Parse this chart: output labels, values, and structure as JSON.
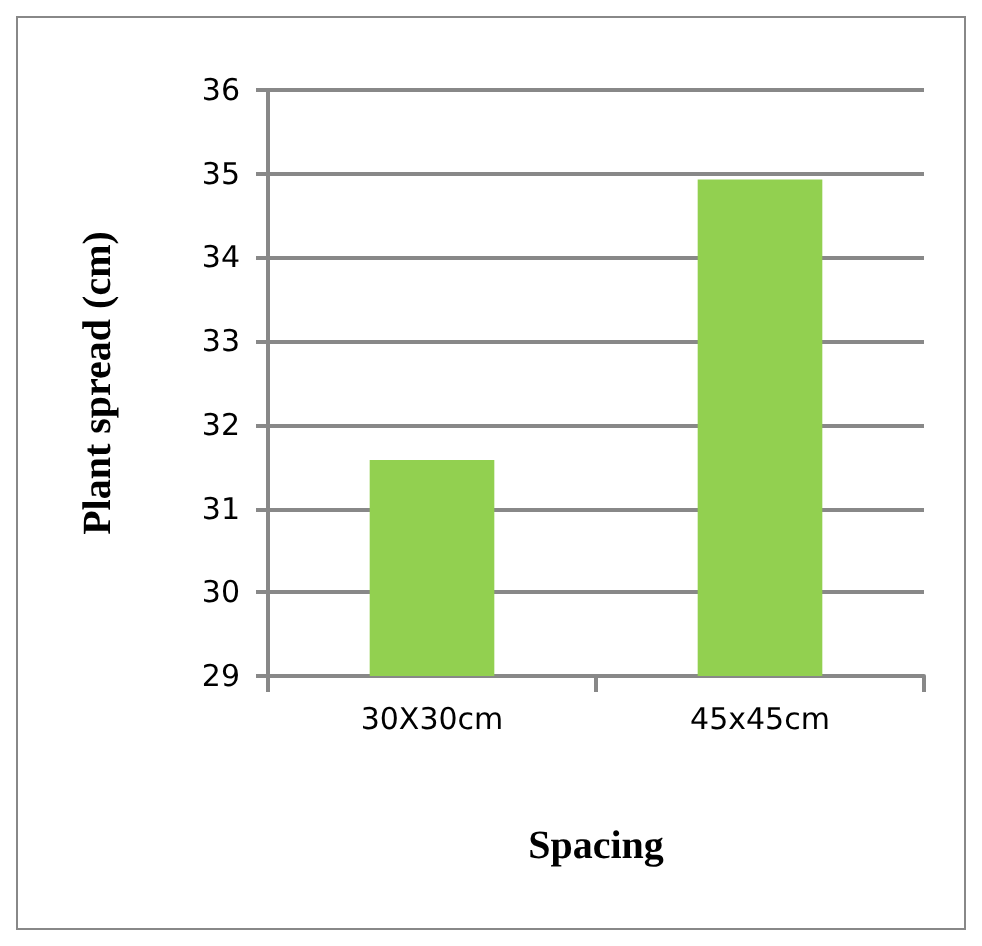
{
  "chart_data": {
    "type": "bar",
    "xlabel": "Spacing",
    "ylabel": "Plant spread (cm)",
    "categories": [
      "30X30cm",
      "45x45cm"
    ],
    "values": [
      31.58,
      34.93
    ],
    "color": "#92d050",
    "ylim": [
      29,
      36
    ],
    "yticks": [
      29,
      30,
      31,
      32,
      33,
      34,
      35,
      36
    ],
    "grid": "y"
  }
}
